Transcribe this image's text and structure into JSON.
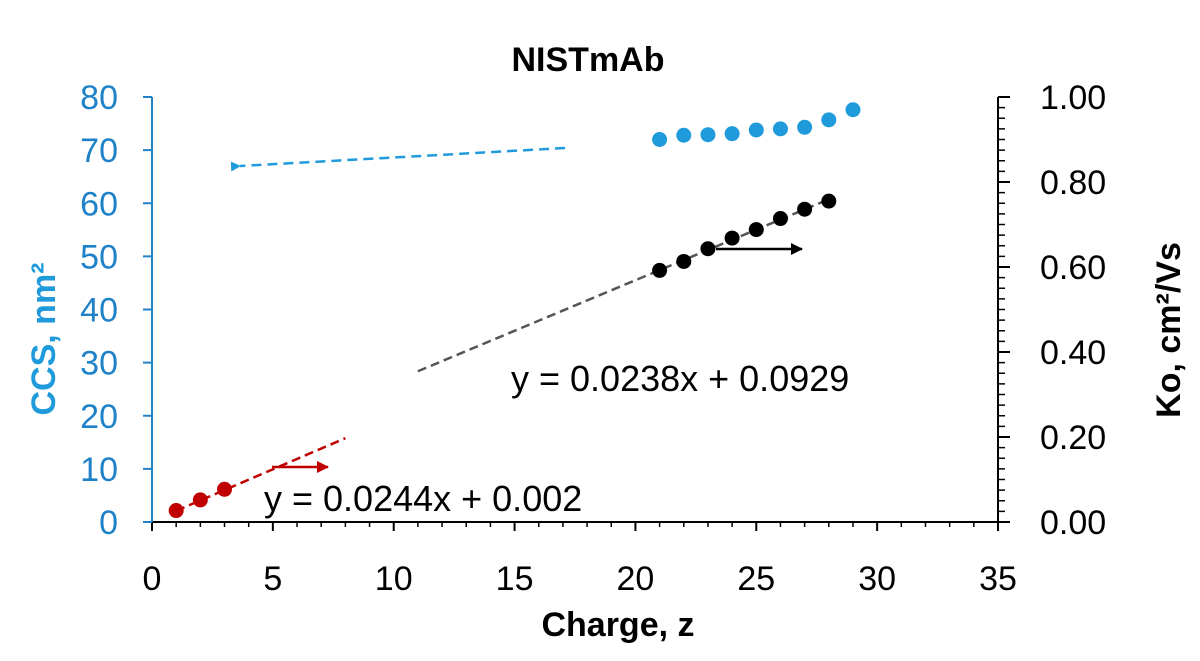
{
  "chart_data": {
    "type": "scatter",
    "title": "NISTmAb",
    "xlabel": "Charge, z",
    "ylabel_left": "CCS, nm²",
    "ylabel_right": "Ko, cm²/Vs",
    "xlim": [
      0,
      35
    ],
    "ylim_left": [
      0,
      80
    ],
    "ylim_right": [
      0,
      1.0
    ],
    "x_ticks": [
      "0",
      "5",
      "10",
      "15",
      "20",
      "25",
      "30",
      "35"
    ],
    "y_ticks_left": [
      "0",
      "10",
      "20",
      "30",
      "40",
      "50",
      "60",
      "70",
      "80"
    ],
    "y_ticks_right": [
      "0.00",
      "0.20",
      "0.40",
      "0.60",
      "0.80",
      "1.00"
    ],
    "grid": false,
    "colors": {
      "ccs": "#1F9BDB",
      "red": "#C00000",
      "black": "#000000",
      "left_axis": "#1F82C8",
      "trend": "#555555"
    },
    "series": [
      {
        "axis": "left",
        "color": "#1F9BDB",
        "x": [
          21,
          22,
          23,
          24,
          25,
          26,
          27,
          28,
          29
        ],
        "y": [
          72.0,
          72.8,
          72.9,
          73.1,
          73.8,
          74.0,
          74.3,
          75.7,
          77.6
        ]
      },
      {
        "axis": "right",
        "color": "#000000",
        "x": [
          21,
          22,
          23,
          24,
          25,
          26,
          27,
          28
        ],
        "y": [
          0.592,
          0.613,
          0.643,
          0.668,
          0.688,
          0.714,
          0.736,
          0.755
        ]
      },
      {
        "axis": "right",
        "color": "#C00000",
        "x": [
          1,
          2,
          3
        ],
        "y": [
          0.027,
          0.052,
          0.077
        ]
      }
    ],
    "trendlines": [
      {
        "series": 1,
        "slope": 0.0238,
        "intercept": 0.0929,
        "x_range": [
          11,
          28
        ],
        "axis": "right",
        "color": "#555555"
      },
      {
        "series": 2,
        "slope": 0.0244,
        "intercept": 0.002,
        "x_range": [
          1,
          8
        ],
        "axis": "right",
        "color": "#C00000"
      }
    ],
    "annotations": {
      "eq_black": "y = 0.0238x + 0.0929",
      "eq_red": "y = 0.0244x + 0.002"
    },
    "arrows": [
      {
        "direction": "left",
        "color": "#1F9BDB",
        "style": "dashed"
      },
      {
        "direction": "right",
        "color": "#000000",
        "style": "solid"
      },
      {
        "direction": "right",
        "color": "#C00000",
        "style": "solid"
      }
    ]
  }
}
